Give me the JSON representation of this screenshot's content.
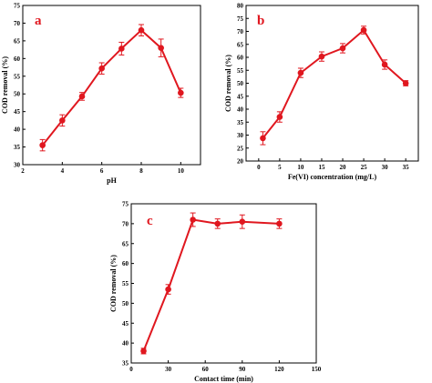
{
  "colors": {
    "series": "#e0171f",
    "axis": "#000000"
  },
  "chart_data": [
    {
      "panel": "a",
      "type": "line",
      "xlabel": "pH",
      "ylabel": "COD removal (%)",
      "xlim": [
        2,
        11
      ],
      "ylim": [
        30,
        75
      ],
      "xticks": [
        2,
        4,
        6,
        8,
        10
      ],
      "yticks": [
        30,
        35,
        40,
        45,
        50,
        55,
        60,
        65,
        70,
        75
      ],
      "grid": false,
      "series": [
        {
          "x": [
            3,
            4,
            5,
            6,
            7,
            8,
            9,
            10
          ],
          "y": [
            35.5,
            42.5,
            49.3,
            57.2,
            62.8,
            68.0,
            63.0,
            50.3
          ],
          "err": [
            1.6,
            1.6,
            1.1,
            1.6,
            1.8,
            1.6,
            2.5,
            1.3
          ]
        }
      ]
    },
    {
      "panel": "b",
      "type": "line",
      "xlabel": "Fe(VI) concentration (mg/L)",
      "ylabel": "COD removal (%)",
      "xlim": [
        -3,
        38
      ],
      "ylim": [
        20,
        80
      ],
      "xticks": [
        0,
        5,
        10,
        15,
        20,
        25,
        30,
        35
      ],
      "yticks": [
        20,
        25,
        30,
        35,
        40,
        45,
        50,
        55,
        60,
        65,
        70,
        75,
        80
      ],
      "grid": false,
      "series": [
        {
          "x": [
            1,
            5,
            10,
            15,
            20,
            25,
            30,
            35
          ],
          "y": [
            28.8,
            37.0,
            54.0,
            60.3,
            63.5,
            70.5,
            57.2,
            50.0
          ],
          "err": [
            2.5,
            2.0,
            1.8,
            1.8,
            1.8,
            1.5,
            1.8,
            1.0
          ]
        }
      ]
    },
    {
      "panel": "c",
      "type": "line",
      "xlabel": "Contact time (min)",
      "ylabel": "COD removal (%)",
      "xlim": [
        0,
        150
      ],
      "ylim": [
        35,
        75
      ],
      "xticks": [
        0,
        30,
        60,
        90,
        120,
        150
      ],
      "yticks": [
        35,
        40,
        45,
        50,
        55,
        60,
        65,
        70,
        75
      ],
      "grid": false,
      "series": [
        {
          "x": [
            10,
            30,
            50,
            70,
            90,
            120
          ],
          "y": [
            38.0,
            53.5,
            71.0,
            70.0,
            70.5,
            70.0
          ],
          "err": [
            0.7,
            1.2,
            1.7,
            1.2,
            1.7,
            1.2
          ]
        }
      ]
    }
  ]
}
